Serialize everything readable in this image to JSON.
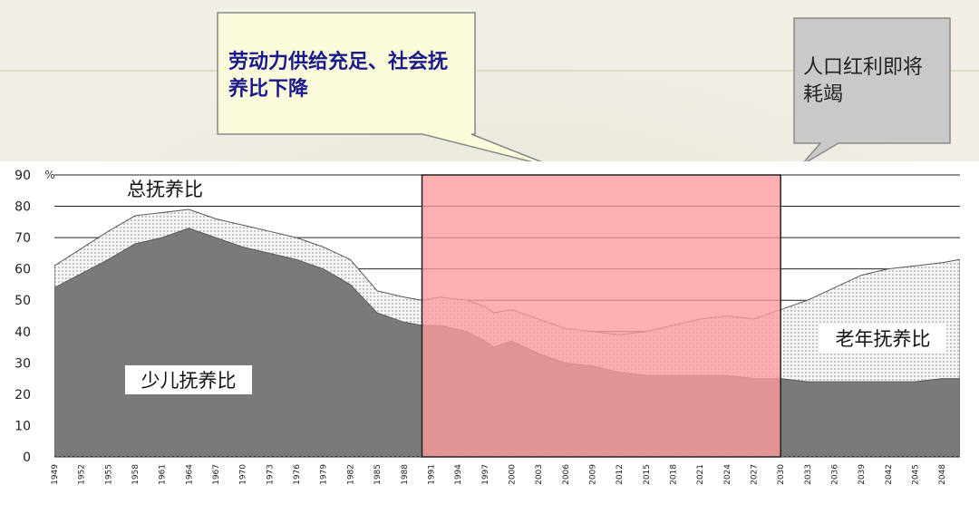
{
  "callouts": {
    "left": "劳动力供给充足、社会抚养比下降",
    "right": "人口红利即将耗竭"
  },
  "chart_data": {
    "type": "area",
    "unit_label": "%",
    "ylim": [
      0,
      90
    ],
    "yticks": [
      0,
      10,
      20,
      30,
      40,
      50,
      60,
      70,
      80,
      90
    ],
    "x_range": [
      1949,
      2050
    ],
    "xticks": [
      1949,
      1952,
      1955,
      1958,
      1961,
      1964,
      1967,
      1970,
      1973,
      1976,
      1979,
      1982,
      1985,
      1988,
      1991,
      1994,
      1997,
      2000,
      2003,
      2006,
      2009,
      2012,
      2015,
      2018,
      2021,
      2024,
      2027,
      2030,
      2033,
      2036,
      2039,
      2042,
      2045,
      2048
    ],
    "highlight_range": [
      1990,
      2030
    ],
    "highlight_color": "#ff9a9a",
    "series": [
      {
        "name": "少儿抚养比",
        "color": "#7a7a7a",
        "x": [
          1949,
          1955,
          1958,
          1961,
          1964,
          1967,
          1970,
          1973,
          1976,
          1979,
          1982,
          1985,
          1988,
          1990,
          1992,
          1995,
          1997,
          1998,
          2000,
          2003,
          2006,
          2009,
          2012,
          2015,
          2018,
          2021,
          2024,
          2027,
          2030,
          2033,
          2036,
          2039,
          2042,
          2045,
          2048,
          2050
        ],
        "values": [
          54,
          63,
          68,
          70,
          73,
          70,
          67,
          65,
          63,
          60,
          55,
          46,
          43,
          42,
          42,
          40,
          37,
          35,
          37,
          33,
          30,
          29,
          27,
          26,
          26,
          26,
          26,
          25,
          25,
          24,
          24,
          24,
          24,
          24,
          25,
          25
        ]
      },
      {
        "name": "总抚养比",
        "color": "#f7f7f7",
        "x": [
          1949,
          1955,
          1958,
          1961,
          1964,
          1967,
          1970,
          1973,
          1976,
          1979,
          1982,
          1985,
          1988,
          1990,
          1992,
          1995,
          1997,
          1998,
          2000,
          2003,
          2006,
          2009,
          2012,
          2015,
          2018,
          2021,
          2024,
          2027,
          2030,
          2033,
          2036,
          2039,
          2042,
          2045,
          2048,
          2050
        ],
        "values": [
          61,
          72,
          77,
          78,
          79,
          76,
          74,
          72,
          70,
          67,
          63,
          53,
          51,
          50,
          51,
          50,
          48,
          46,
          47,
          44,
          41,
          40,
          39,
          40,
          42,
          44,
          45,
          44,
          47,
          50,
          54,
          58,
          60,
          61,
          62,
          63
        ]
      }
    ],
    "labels": {
      "total": "总抚养比",
      "child": "少儿抚养比",
      "elderly": "老年抚养比"
    }
  }
}
